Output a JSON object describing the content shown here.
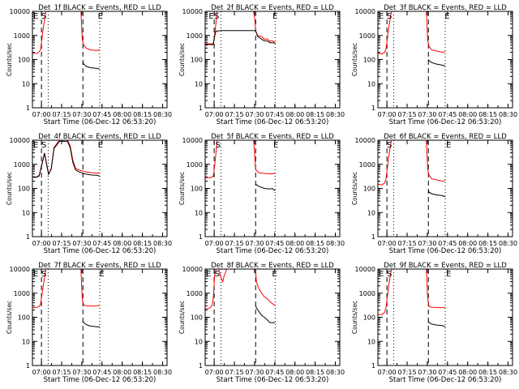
{
  "figure": {
    "xlabel": "Start Time (06-Dec-12 06:53:20)",
    "ylabel": "Counts/sec",
    "x_ticks": [
      "07:00",
      "07:15",
      "07:30",
      "07:45",
      "08:00",
      "08:15",
      "08:30"
    ],
    "y_ticks": [
      "1",
      "10",
      "100",
      "1000",
      "10000"
    ]
  },
  "colors": {
    "events": "#000000",
    "lld": "#ff0000",
    "axes": "#000000"
  },
  "chart_data": [
    {
      "type": "line",
      "title": "Det_1f BLACK = Events, RED = LLD",
      "ylog": true,
      "ylim": [
        1,
        10000
      ],
      "xlim_minutes": [
        0,
        100
      ],
      "xlabel": "Start Time (06-Dec-12 06:53:20)",
      "ylabel": "Counts/sec",
      "markers": [
        {
          "label": "E",
          "minute": 0
        },
        {
          "label": "S",
          "minute": 6
        },
        {
          "label": "E",
          "minute": 48
        }
      ],
      "vlines_dashed": [
        6.7,
        37.5
      ],
      "vlines_dotted": [
        11.7,
        50
      ],
      "series": [
        {
          "color": "#ff0000",
          "x": [
            0,
            3,
            5,
            6,
            8,
            10,
            12,
            36,
            37,
            38,
            40,
            43,
            48,
            50
          ],
          "y": [
            180,
            180,
            210,
            250,
            2000,
            10000,
            10000,
            10000,
            700,
            400,
            300,
            250,
            240,
            260
          ]
        },
        {
          "color": "#000000",
          "x": [
            37.5,
            38,
            40,
            43,
            48,
            50
          ],
          "y": [
            80,
            65,
            52,
            46,
            43,
            40
          ]
        }
      ]
    },
    {
      "type": "line",
      "title": "Det_2f BLACK = Events, RED = LLD",
      "ylog": true,
      "ylim": [
        1,
        10000
      ],
      "xlim_minutes": [
        0,
        100
      ],
      "xlabel": "Start Time (06-Dec-12 06:53:20)",
      "ylabel": "Counts/sec",
      "markers": [
        {
          "label": "E",
          "minute": 2
        },
        {
          "label": "S",
          "minute": 6
        },
        {
          "label": "E",
          "minute": 49.5
        }
      ],
      "vlines_dashed": [
        6.7,
        37.5
      ],
      "vlines_dotted": [
        11.7,
        52
      ],
      "series": [
        {
          "color": "#ff0000",
          "x": [
            0,
            6,
            7,
            9,
            12,
            36,
            37,
            37.5,
            39,
            42,
            44,
            46,
            48,
            50,
            52
          ],
          "y": [
            450,
            450,
            1000,
            10000,
            10000,
            10000,
            4000,
            1500,
            1000,
            900,
            700,
            720,
            580,
            600,
            500
          ]
        },
        {
          "color": "#000000",
          "x": [
            0,
            6,
            7,
            8,
            12,
            36,
            37.5,
            39,
            42,
            44,
            46,
            48,
            50,
            52
          ],
          "y": [
            420,
            420,
            900,
            1500,
            1600,
            1600,
            1600,
            900,
            700,
            600,
            600,
            500,
            500,
            480
          ]
        }
      ]
    },
    {
      "type": "line",
      "title": "Det_3f BLACK = Events, RED = LLD",
      "ylog": true,
      "ylim": [
        1,
        10000
      ],
      "xlim_minutes": [
        0,
        100
      ],
      "xlabel": "Start Time (06-Dec-12 06:53:20)",
      "ylabel": "Counts/sec",
      "markers": [
        {
          "label": "E",
          "minute": 0
        },
        {
          "label": "S",
          "minute": 6
        },
        {
          "label": "E",
          "minute": 49
        }
      ],
      "vlines_dashed": [
        6.7,
        37.5
      ],
      "vlines_dotted": [
        11.7,
        50
      ],
      "series": [
        {
          "color": "#ff0000",
          "x": [
            0,
            3,
            5,
            6,
            8,
            10,
            12,
            36,
            37,
            38,
            40,
            43,
            48,
            50
          ],
          "y": [
            180,
            170,
            200,
            280,
            2000,
            10000,
            10000,
            10000,
            600,
            350,
            250,
            230,
            200,
            210
          ]
        },
        {
          "color": "#000000",
          "x": [
            37.5,
            38,
            40,
            43,
            48,
            50
          ],
          "y": [
            100,
            90,
            75,
            66,
            58,
            55
          ]
        }
      ]
    },
    {
      "type": "line",
      "title": "Det_4f BLACK = Events, RED = LLD",
      "ylog": true,
      "ylim": [
        1,
        10000
      ],
      "xlim_minutes": [
        0,
        100
      ],
      "xlabel": "Start Time (06-Dec-12 06:53:20)",
      "ylabel": "Counts/sec",
      "markers": [
        {
          "label": "E",
          "minute": 0
        },
        {
          "label": "S",
          "minute": 6
        },
        {
          "label": "E",
          "minute": 48
        }
      ],
      "vlines_dashed": [
        6.7,
        37.5
      ],
      "vlines_dotted": [
        11.7,
        50
      ],
      "series": [
        {
          "color": "#ff0000",
          "x": [
            0,
            3,
            5,
            7,
            9,
            10,
            12,
            14,
            16,
            20,
            26,
            28,
            30,
            32,
            34,
            36,
            37.5,
            40,
            44,
            48,
            50
          ],
          "y": [
            300,
            300,
            350,
            1000,
            3000,
            1500,
            400,
            700,
            5000,
            10000,
            10000,
            6000,
            1500,
            700,
            600,
            550,
            520,
            480,
            450,
            440,
            420
          ]
        },
        {
          "color": "#000000",
          "x": [
            0,
            3,
            5,
            7,
            9,
            10,
            12,
            14,
            16,
            20,
            26,
            28,
            30,
            32,
            34,
            36,
            37.5,
            40,
            44,
            48,
            50
          ],
          "y": [
            290,
            290,
            330,
            950,
            2800,
            1400,
            380,
            650,
            4500,
            9000,
            9000,
            5000,
            1200,
            600,
            500,
            460,
            420,
            390,
            360,
            350,
            320
          ]
        }
      ]
    },
    {
      "type": "line",
      "title": "Det_5f BLACK = Events, RED = LLD",
      "ylog": true,
      "ylim": [
        1,
        10000
      ],
      "xlim_minutes": [
        0,
        100
      ],
      "xlabel": "Start Time (06-Dec-12 06:53:20)",
      "ylabel": "Counts/sec",
      "markers": [
        {
          "label": "S",
          "minute": 7
        },
        {
          "label": "E",
          "minute": 50
        }
      ],
      "vlines_dashed": [
        6.7,
        37.5
      ],
      "vlines_dotted": [
        11.7,
        52
      ],
      "series": [
        {
          "color": "#ff0000",
          "x": [
            0,
            4,
            6,
            7,
            9,
            12,
            36,
            37.5,
            40,
            44,
            48,
            52
          ],
          "y": [
            280,
            280,
            320,
            800,
            10000,
            10000,
            10000,
            600,
            450,
            420,
            400,
            420
          ]
        },
        {
          "color": "#000000",
          "x": [
            37.5,
            40,
            44,
            48,
            50,
            52
          ],
          "y": [
            150,
            120,
            100,
            95,
            100,
            80
          ]
        }
      ]
    },
    {
      "type": "line",
      "title": "Det_6f BLACK = Events, RED = LLD",
      "ylog": true,
      "ylim": [
        1,
        10000
      ],
      "xlim_minutes": [
        0,
        100
      ],
      "xlabel": "Start Time (06-Dec-12 06:53:20)",
      "ylabel": "Counts/sec",
      "markers": [
        {
          "label": "S",
          "minute": 6
        },
        {
          "label": "E",
          "minute": 50
        }
      ],
      "vlines_dashed": [
        6.7,
        37.5
      ],
      "vlines_dotted": [
        11.7,
        50
      ],
      "series": [
        {
          "color": "#ff0000",
          "x": [
            0,
            3,
            5,
            6,
            8,
            10,
            12,
            36,
            37,
            38,
            40,
            43,
            48,
            50
          ],
          "y": [
            150,
            140,
            170,
            250,
            2000,
            10000,
            10000,
            10000,
            600,
            350,
            250,
            230,
            200,
            210
          ]
        },
        {
          "color": "#000000",
          "x": [
            37.5,
            38,
            40,
            43,
            48,
            50
          ],
          "y": [
            80,
            70,
            60,
            55,
            50,
            45
          ]
        }
      ]
    },
    {
      "type": "line",
      "title": "Det_7f BLACK = Events, RED = LLD",
      "ylog": true,
      "ylim": [
        1,
        10000
      ],
      "xlim_minutes": [
        0,
        100
      ],
      "xlabel": "Start Time (06-Dec-12 06:53:20)",
      "ylabel": "Counts/sec",
      "markers": [
        {
          "label": "E",
          "minute": 0
        },
        {
          "label": "S",
          "minute": 6
        },
        {
          "label": "E",
          "minute": 49
        }
      ],
      "vlines_dashed": [
        6.7,
        37.5
      ],
      "vlines_dotted": [
        11.7,
        50
      ],
      "series": [
        {
          "color": "#ff0000",
          "x": [
            0,
            3,
            5,
            6,
            8,
            10,
            12,
            36,
            37,
            38,
            40,
            43,
            48,
            50
          ],
          "y": [
            250,
            260,
            280,
            350,
            2000,
            10000,
            10000,
            10000,
            600,
            330,
            300,
            290,
            300,
            310
          ]
        },
        {
          "color": "#000000",
          "x": [
            37.5,
            38,
            40,
            43,
            48,
            50
          ],
          "y": [
            70,
            60,
            50,
            43,
            40,
            40
          ]
        }
      ]
    },
    {
      "type": "line",
      "title": "Det_8f BLACK = Events, RED = LLD",
      "ylog": true,
      "ylim": [
        1,
        10000
      ],
      "xlim_minutes": [
        0,
        100
      ],
      "xlabel": "Start Time (06-Dec-12 06:53:20)",
      "ylabel": "Counts/sec",
      "markers": [
        {
          "label": "E",
          "minute": 0
        },
        {
          "label": "S",
          "minute": 6.5
        },
        {
          "label": "E",
          "minute": 49
        }
      ],
      "vlines_dashed": [
        6.7,
        37.5
      ],
      "vlines_dotted": [
        11.7,
        52
      ],
      "series": [
        {
          "color": "#ff0000",
          "x": [
            0,
            3,
            5,
            6,
            7,
            8,
            10,
            12,
            13,
            14,
            16,
            36,
            37.5,
            38,
            40,
            42,
            44,
            46,
            48,
            52
          ],
          "y": [
            220,
            230,
            300,
            600,
            5000,
            10000,
            10000,
            4000,
            3000,
            5000,
            10000,
            10000,
            8000,
            3000,
            1500,
            1000,
            700,
            600,
            450,
            300
          ]
        },
        {
          "color": "#000000",
          "x": [
            37.5,
            38,
            40,
            42,
            44,
            46,
            48,
            52
          ],
          "y": [
            320,
            250,
            170,
            120,
            100,
            80,
            60,
            60
          ]
        }
      ]
    },
    {
      "type": "line",
      "title": "Det_9f BLACK = Events, RED = LLD",
      "ylog": true,
      "ylim": [
        1,
        10000
      ],
      "xlim_minutes": [
        0,
        100
      ],
      "xlabel": "Start Time (06-Dec-12 06:53:20)",
      "ylabel": "Counts/sec",
      "markers": [
        {
          "label": "E",
          "minute": 0
        },
        {
          "label": "S",
          "minute": 6
        },
        {
          "label": "E",
          "minute": 50
        }
      ],
      "vlines_dashed": [
        6.7,
        37.5
      ],
      "vlines_dotted": [
        11.7,
        50
      ],
      "series": [
        {
          "color": "#ff0000",
          "x": [
            0,
            3,
            5,
            6,
            8,
            10,
            12,
            36,
            37,
            38,
            40,
            43,
            48,
            50
          ],
          "y": [
            130,
            130,
            160,
            250,
            2000,
            10000,
            10000,
            10000,
            600,
            280,
            260,
            260,
            250,
            260
          ]
        },
        {
          "color": "#000000",
          "x": [
            37.5,
            38,
            40,
            43,
            48,
            50
          ],
          "y": [
            70,
            60,
            52,
            48,
            45,
            40
          ]
        }
      ]
    }
  ]
}
